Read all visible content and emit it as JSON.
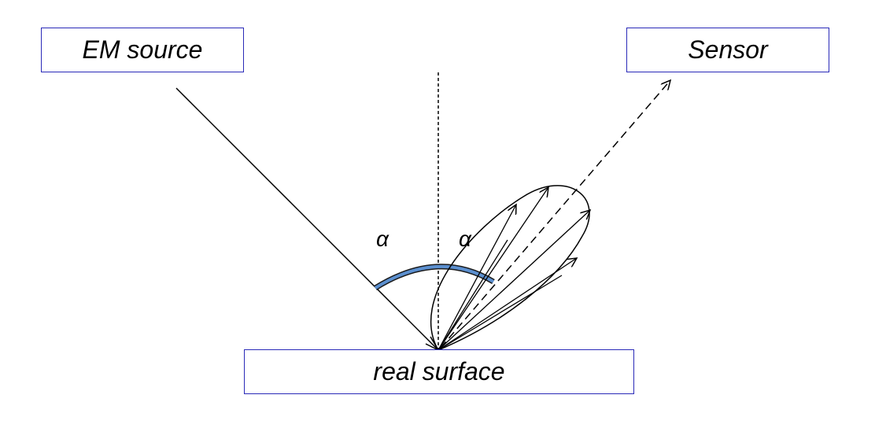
{
  "boxes": {
    "em_source": "EM source",
    "sensor": "Sensor",
    "surface": "real surface"
  },
  "angles": {
    "left": "α",
    "right": "α"
  },
  "colors": {
    "box_border": "#2a2ab8",
    "arc_fill": "#5b8fcf",
    "line": "#000000"
  }
}
